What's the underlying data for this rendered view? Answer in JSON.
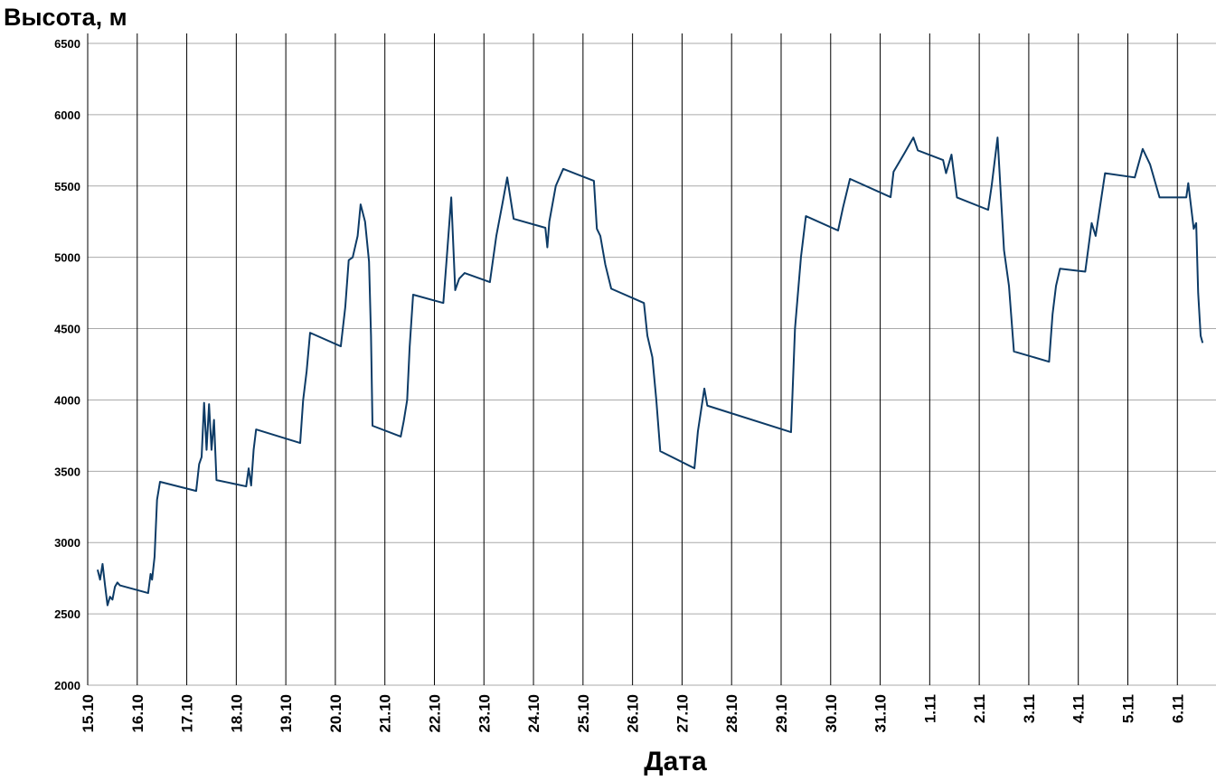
{
  "chart_data": {
    "type": "line",
    "title": "Высота, м",
    "x_label": "Дата",
    "x": [
      0.2,
      0.25,
      0.3,
      0.35,
      0.4,
      0.45,
      0.5,
      0.55,
      0.6,
      0.65,
      1.22,
      1.27,
      1.3,
      1.35,
      1.4,
      1.46,
      2.19,
      2.25,
      2.3,
      2.35,
      2.4,
      2.45,
      2.5,
      2.55,
      2.6,
      3.2,
      3.25,
      3.3,
      3.35,
      3.4,
      4.29,
      4.35,
      4.42,
      4.49,
      5.11,
      5.2,
      5.27,
      5.35,
      5.45,
      5.51,
      5.6,
      5.68,
      5.72,
      5.75,
      6.32,
      6.38,
      6.45,
      6.5,
      6.57,
      7.18,
      7.25,
      7.34,
      7.42,
      7.5,
      7.61,
      8.12,
      8.25,
      8.37,
      8.47,
      8.6,
      9.24,
      9.28,
      9.32,
      9.45,
      9.6,
      10.22,
      10.28,
      10.35,
      10.45,
      10.57,
      11.23,
      11.3,
      11.4,
      11.48,
      11.56,
      12.25,
      12.32,
      12.45,
      12.51,
      14.2,
      14.28,
      14.4,
      14.5,
      15.15,
      15.25,
      15.39,
      16.21,
      16.27,
      16.49,
      16.67,
      16.76,
      17.27,
      17.33,
      17.44,
      17.55,
      18.18,
      18.25,
      18.37,
      18.5,
      18.6,
      18.7,
      19.41,
      19.48,
      19.55,
      19.63,
      20.14,
      20.27,
      20.35,
      20.54,
      21.14,
      21.3,
      21.45,
      21.64,
      22.18,
      22.22,
      22.33,
      22.38,
      22.42,
      22.47,
      22.51
    ],
    "series": [
      {
        "name": "Высота",
        "color": "#0d3b66",
        "values": [
          2810,
          2740,
          2850,
          2700,
          2560,
          2620,
          2600,
          2690,
          2720,
          2700,
          2646,
          2780,
          2740,
          2900,
          3300,
          3426,
          3362,
          3550,
          3600,
          3980,
          3650,
          3970,
          3650,
          3860,
          3438,
          3394,
          3520,
          3400,
          3650,
          3793,
          3698,
          4000,
          4200,
          4471,
          4376,
          4650,
          4980,
          5000,
          5150,
          5371,
          5250,
          4970,
          4450,
          3819,
          3743,
          3850,
          4000,
          4370,
          4738,
          4680,
          5000,
          5420,
          4770,
          4850,
          4890,
          4826,
          5150,
          5370,
          5560,
          5270,
          5207,
          5070,
          5250,
          5500,
          5620,
          5536,
          5200,
          5150,
          4950,
          4780,
          4680,
          4450,
          4300,
          4000,
          3641,
          3521,
          3780,
          4080,
          3960,
          3774,
          4500,
          5000,
          5289,
          5188,
          5350,
          5550,
          5422,
          5600,
          5730,
          5840,
          5750,
          5682,
          5590,
          5720,
          5420,
          5333,
          5500,
          5840,
          5050,
          4800,
          4340,
          4268,
          4600,
          4800,
          4920,
          4900,
          5240,
          5150,
          5590,
          5560,
          5760,
          5650,
          5420,
          5420,
          5520,
          5200,
          5240,
          4750,
          4450,
          4400
        ]
      }
    ],
    "xlim": [
      0,
      22.78
    ],
    "ylim": [
      2000,
      6500
    ],
    "xticks": [
      {
        "value": 0,
        "label": "15.10"
      },
      {
        "value": 1,
        "label": "16.10"
      },
      {
        "value": 2,
        "label": "17.10"
      },
      {
        "value": 3,
        "label": "18.10"
      },
      {
        "value": 4,
        "label": "19.10"
      },
      {
        "value": 5,
        "label": "20.10"
      },
      {
        "value": 6,
        "label": "21.10"
      },
      {
        "value": 7,
        "label": "22.10"
      },
      {
        "value": 8,
        "label": "23.10"
      },
      {
        "value": 9,
        "label": "24.10"
      },
      {
        "value": 10,
        "label": "25.10"
      },
      {
        "value": 11,
        "label": "26.10"
      },
      {
        "value": 12,
        "label": "27.10"
      },
      {
        "value": 13,
        "label": "28.10"
      },
      {
        "value": 14,
        "label": "29.10"
      },
      {
        "value": 15,
        "label": "30.10"
      },
      {
        "value": 16,
        "label": "31.10"
      },
      {
        "value": 17,
        "label": "1.11"
      },
      {
        "value": 18,
        "label": "2.11"
      },
      {
        "value": 19,
        "label": "3.11"
      },
      {
        "value": 20,
        "label": "4.11"
      },
      {
        "value": 21,
        "label": "5.11"
      },
      {
        "value": 22,
        "label": "6.11"
      }
    ],
    "yticks": [
      2000,
      2500,
      3000,
      3500,
      4000,
      4500,
      5000,
      5500,
      6000,
      6500
    ],
    "grid": true
  }
}
